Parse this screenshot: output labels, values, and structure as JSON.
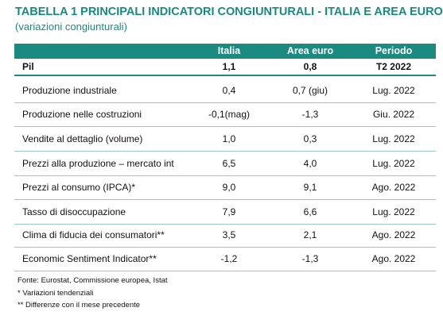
{
  "header": {
    "title": "TABELLA 1  PRINCIPALI INDICATORI CONGIUNTURALI - ITALIA E AREA EURO",
    "subtitle": "(variazioni congiunturali)"
  },
  "table": {
    "columns": [
      "",
      "Italia",
      "Area euro",
      "Periodo"
    ],
    "rows": [
      [
        "Pil",
        "1,1",
        "0,8",
        "T2 2022"
      ],
      [
        "Produzione industriale",
        "0,4",
        "0,7 (giu)",
        "Lug. 2022"
      ],
      [
        "Produzione nelle costruzioni",
        "-0,1(mag)",
        "-1,3",
        "Giu. 2022"
      ],
      [
        "Vendite al dettaglio (volume)",
        "1,0",
        "0,3",
        "Lug. 2022"
      ],
      [
        "Prezzi alla produzione – mercato int",
        "6,5",
        "4,0",
        "Lug. 2022"
      ],
      [
        "Prezzi al consumo (IPCA)*",
        "9,0",
        "9,1",
        "Ago. 2022"
      ],
      [
        "Tasso di disoccupazione",
        "7,9",
        "6,6",
        "Lug. 2022"
      ],
      [
        "Clima di fiducia dei consumatori**",
        "3,5",
        "2,1",
        "Ago. 2022"
      ],
      [
        "Economic Sentiment Indicator**",
        "-1,2",
        "-1,3",
        "Ago. 2022"
      ]
    ]
  },
  "footnotes": [
    "Fonte: Eurostat, Commissione europea, Istat",
    "* Variazioni tendenziali",
    "** Differenze con il mese precedente"
  ]
}
